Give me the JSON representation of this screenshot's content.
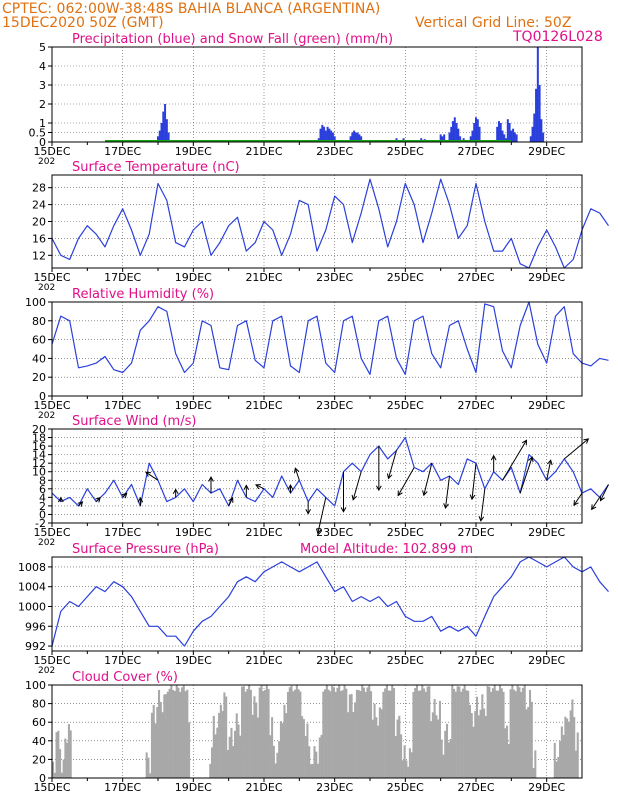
{
  "header": {
    "line1": "CPTEC:   062:00W-38:48S  BAHIA BLANCA (ARGENTINA)",
    "line2_left": "15DEC2020 50Z (GMT)",
    "line2_right": "Vertical Grid Line: 50Z",
    "code": "TQ0126L028"
  },
  "colors": {
    "header": "#e07010",
    "title": "#e0108a",
    "series": "#2a3fdc",
    "snow": "#19a019",
    "cloud": "#a8a8a8",
    "axis": "#000000"
  },
  "x_axis": {
    "labels": [
      "15DEC",
      "17DEC",
      "19DEC",
      "21DEC",
      "23DEC",
      "25DEC",
      "27DEC",
      "29DEC"
    ],
    "stub": "202"
  },
  "chart_data": [
    {
      "id": "precip",
      "type": "bar",
      "title": "Precipitation (blue) and Snow Fall (green) (mm/h)",
      "ylim": [
        0,
        5
      ],
      "yticks": [
        "0",
        "0.5",
        "1",
        "2",
        "3",
        "4",
        "5"
      ],
      "grid": true,
      "series": [
        {
          "name": "Precipitation",
          "color": "#2a3fdc",
          "points": [
            [
              3.0,
              0.3
            ],
            [
              3.05,
              0.6
            ],
            [
              3.1,
              1.0
            ],
            [
              3.15,
              1.6
            ],
            [
              3.2,
              2.0
            ],
            [
              3.25,
              1.2
            ],
            [
              3.3,
              0.5
            ],
            [
              7.55,
              0.2
            ],
            [
              7.6,
              0.7
            ],
            [
              7.65,
              0.9
            ],
            [
              7.7,
              0.8
            ],
            [
              7.75,
              0.6
            ],
            [
              7.8,
              0.8
            ],
            [
              7.85,
              0.7
            ],
            [
              7.9,
              0.6
            ],
            [
              7.95,
              0.5
            ],
            [
              8.0,
              0.3
            ],
            [
              8.45,
              0.3
            ],
            [
              8.5,
              0.5
            ],
            [
              8.55,
              0.6
            ],
            [
              8.6,
              0.5
            ],
            [
              8.65,
              0.5
            ],
            [
              8.7,
              0.4
            ],
            [
              8.75,
              0.3
            ],
            [
              9.1,
              0.1
            ],
            [
              9.45,
              0.1
            ],
            [
              9.75,
              0.2
            ],
            [
              9.95,
              0.2
            ],
            [
              10.35,
              0.1
            ],
            [
              10.45,
              0.2
            ],
            [
              10.55,
              0.15
            ],
            [
              11.0,
              0.4
            ],
            [
              11.05,
              0.3
            ],
            [
              11.1,
              0.4
            ],
            [
              11.25,
              0.5
            ],
            [
              11.3,
              0.8
            ],
            [
              11.35,
              1.1
            ],
            [
              11.4,
              1.3
            ],
            [
              11.45,
              1.0
            ],
            [
              11.5,
              0.7
            ],
            [
              11.55,
              0.3
            ],
            [
              11.65,
              0.2
            ],
            [
              11.85,
              0.3
            ],
            [
              11.9,
              0.6
            ],
            [
              11.95,
              1.0
            ],
            [
              12.0,
              1.3
            ],
            [
              12.05,
              1.2
            ],
            [
              12.1,
              0.8
            ],
            [
              12.6,
              0.8
            ],
            [
              12.65,
              1.1
            ],
            [
              12.7,
              1.0
            ],
            [
              12.75,
              0.6
            ],
            [
              12.8,
              0.4
            ],
            [
              12.85,
              0.2
            ],
            [
              12.9,
              1.2
            ],
            [
              12.95,
              1.0
            ],
            [
              13.0,
              0.6
            ],
            [
              13.05,
              0.7
            ],
            [
              13.1,
              0.5
            ],
            [
              13.15,
              0.4
            ],
            [
              13.55,
              0.3
            ],
            [
              13.6,
              0.8
            ],
            [
              13.65,
              1.5
            ],
            [
              13.7,
              2.8
            ],
            [
              13.75,
              5.0
            ],
            [
              13.8,
              3.0
            ],
            [
              13.85,
              1.2
            ],
            [
              13.9,
              0.5
            ]
          ]
        },
        {
          "name": "Snow Fall",
          "color": "#19a019",
          "baseline": [
            1.5,
            13.0
          ]
        }
      ]
    },
    {
      "id": "temp",
      "type": "line",
      "title": "Surface Temperature (nC)",
      "ylim": [
        9,
        31
      ],
      "yticks": [
        12,
        16,
        20,
        24,
        28
      ],
      "grid": true,
      "x": [
        0,
        0.25,
        0.5,
        0.75,
        1,
        1.25,
        1.5,
        1.75,
        2,
        2.25,
        2.5,
        2.75,
        3,
        3.25,
        3.5,
        3.75,
        4,
        4.25,
        4.5,
        4.75,
        5,
        5.25,
        5.5,
        5.75,
        6,
        6.25,
        6.5,
        6.75,
        7,
        7.25,
        7.5,
        7.75,
        8,
        8.25,
        8.5,
        8.75,
        9,
        9.25,
        9.5,
        9.75,
        10,
        10.25,
        10.5,
        10.75,
        11,
        11.25,
        11.5,
        11.75,
        12,
        12.25,
        12.5,
        12.75,
        13,
        13.25,
        13.5,
        13.75,
        14,
        14.25,
        14.5,
        14.75,
        15,
        15.25,
        15.5,
        15.75
      ],
      "series": [
        {
          "name": "",
          "values": [
            16,
            12,
            11,
            16,
            19,
            17,
            14,
            19,
            23,
            18,
            12,
            17,
            29,
            25,
            15,
            14,
            18,
            20,
            12,
            15,
            19,
            21,
            13,
            15,
            20,
            18,
            12,
            17,
            25,
            24,
            13,
            18,
            26,
            24,
            15,
            22,
            30,
            23,
            14,
            20,
            29,
            24,
            15,
            22,
            30,
            24,
            16,
            19,
            29,
            20,
            13,
            13,
            16,
            10,
            9,
            14,
            18,
            14,
            9,
            11,
            18,
            23,
            22,
            19
          ]
        }
      ]
    },
    {
      "id": "rh",
      "type": "line",
      "title": "Relative Humidity (%)",
      "ylim": [
        0,
        100
      ],
      "yticks": [
        0,
        20,
        40,
        60,
        80,
        100
      ],
      "grid": true,
      "x": [
        0,
        0.25,
        0.5,
        0.75,
        1,
        1.25,
        1.5,
        1.75,
        2,
        2.25,
        2.5,
        2.75,
        3,
        3.25,
        3.5,
        3.75,
        4,
        4.25,
        4.5,
        4.75,
        5,
        5.25,
        5.5,
        5.75,
        6,
        6.25,
        6.5,
        6.75,
        7,
        7.25,
        7.5,
        7.75,
        8,
        8.25,
        8.5,
        8.75,
        9,
        9.25,
        9.5,
        9.75,
        10,
        10.25,
        10.5,
        10.75,
        11,
        11.25,
        11.5,
        11.75,
        12,
        12.25,
        12.5,
        12.75,
        13,
        13.25,
        13.5,
        13.75,
        14,
        14.25,
        14.5,
        14.75,
        15,
        15.25,
        15.5,
        15.75
      ],
      "series": [
        {
          "name": "",
          "values": [
            55,
            85,
            80,
            30,
            32,
            35,
            42,
            28,
            25,
            35,
            70,
            80,
            95,
            90,
            45,
            25,
            35,
            80,
            75,
            30,
            28,
            75,
            80,
            38,
            30,
            80,
            85,
            32,
            25,
            80,
            85,
            35,
            25,
            80,
            85,
            40,
            23,
            80,
            85,
            40,
            23,
            80,
            85,
            45,
            30,
            75,
            80,
            50,
            25,
            98,
            95,
            48,
            30,
            75,
            100,
            55,
            35,
            85,
            95,
            45,
            35,
            32,
            40,
            38
          ]
        }
      ]
    },
    {
      "id": "wind",
      "type": "line",
      "title": "Surface Wind (m/s)",
      "ylim": [
        -2,
        20
      ],
      "yticks": [
        -2,
        0,
        2,
        4,
        6,
        8,
        10,
        12,
        14,
        16,
        18,
        20
      ],
      "grid": true,
      "x": [
        0,
        0.25,
        0.5,
        0.75,
        1,
        1.25,
        1.5,
        1.75,
        2,
        2.25,
        2.5,
        2.75,
        3,
        3.25,
        3.5,
        3.75,
        4,
        4.25,
        4.5,
        4.75,
        5,
        5.25,
        5.5,
        5.75,
        6,
        6.25,
        6.5,
        6.75,
        7,
        7.25,
        7.5,
        7.75,
        8,
        8.25,
        8.5,
        8.75,
        9,
        9.25,
        9.5,
        9.75,
        10,
        10.25,
        10.5,
        10.75,
        11,
        11.25,
        11.5,
        11.75,
        12,
        12.25,
        12.5,
        12.75,
        13,
        13.25,
        13.5,
        13.75,
        14,
        14.25,
        14.5,
        14.75,
        15,
        15.25,
        15.5,
        15.75
      ],
      "series": [
        {
          "name": "",
          "values": [
            5,
            3,
            4,
            2,
            6,
            3,
            5,
            8,
            4,
            7,
            2,
            12,
            8,
            3,
            4,
            6,
            3,
            7,
            5,
            6,
            2,
            8,
            4,
            3,
            6,
            4,
            9,
            5,
            8,
            3,
            6,
            4,
            2,
            10,
            12,
            10,
            14,
            16,
            13,
            15,
            18,
            11,
            10,
            12,
            8,
            9,
            7,
            13,
            12,
            6,
            10,
            8,
            11,
            5,
            14,
            12,
            8,
            10,
            13,
            10,
            5,
            6,
            4,
            7
          ]
        }
      ],
      "vectors": [
        [
          0.25,
          0,
          1
        ],
        [
          0.75,
          1,
          1
        ],
        [
          1.25,
          1,
          1
        ],
        [
          2,
          1,
          1
        ],
        [
          2.5,
          0,
          2
        ],
        [
          3,
          -3,
          2
        ],
        [
          3.5,
          0,
          2
        ],
        [
          4.5,
          0,
          4
        ],
        [
          5,
          1,
          2
        ],
        [
          5.5,
          0,
          3
        ],
        [
          6,
          -2,
          1
        ],
        [
          6.75,
          0,
          2
        ],
        [
          7,
          -1,
          3
        ],
        [
          7.25,
          0,
          -3
        ],
        [
          7.75,
          -2,
          -9
        ],
        [
          8.25,
          0,
          -10
        ],
        [
          8.75,
          -2,
          -7
        ],
        [
          9.25,
          0,
          -11
        ],
        [
          9.75,
          -2,
          -7
        ],
        [
          10.25,
          -4,
          -7
        ],
        [
          10.75,
          -2,
          -8
        ],
        [
          11.25,
          -1,
          -8
        ],
        [
          12,
          -1,
          -9
        ],
        [
          12.25,
          -1,
          -8
        ],
        [
          12.5,
          0,
          4
        ],
        [
          12.75,
          6,
          10
        ],
        [
          13.25,
          3,
          9
        ],
        [
          14,
          1,
          5
        ],
        [
          14.5,
          6,
          5
        ],
        [
          15,
          -2,
          -3
        ],
        [
          15.5,
          -2,
          -3
        ],
        [
          15.75,
          -2,
          -4
        ]
      ]
    },
    {
      "id": "pres",
      "type": "line",
      "title": "Surface Pressure (hPa)",
      "annotation": "Model Altitude: 102.899 m",
      "ylim": [
        991,
        1010
      ],
      "yticks": [
        992,
        996,
        1000,
        1004,
        1008
      ],
      "grid": true,
      "x": [
        0,
        0.25,
        0.5,
        0.75,
        1,
        1.25,
        1.5,
        1.75,
        2,
        2.25,
        2.5,
        2.75,
        3,
        3.25,
        3.5,
        3.75,
        4,
        4.25,
        4.5,
        4.75,
        5,
        5.25,
        5.5,
        5.75,
        6,
        6.25,
        6.5,
        6.75,
        7,
        7.25,
        7.5,
        7.75,
        8,
        8.25,
        8.5,
        8.75,
        9,
        9.25,
        9.5,
        9.75,
        10,
        10.25,
        10.5,
        10.75,
        11,
        11.25,
        11.5,
        11.75,
        12,
        12.25,
        12.5,
        12.75,
        13,
        13.25,
        13.5,
        13.75,
        14,
        14.25,
        14.5,
        14.75,
        15,
        15.25,
        15.5,
        15.75
      ],
      "series": [
        {
          "name": "",
          "values": [
            992,
            999,
            1001,
            1000,
            1002,
            1004,
            1003,
            1005,
            1004,
            1002,
            999,
            996,
            996,
            994,
            994,
            992,
            995,
            997,
            998,
            1000,
            1002,
            1005,
            1006,
            1005,
            1007,
            1008,
            1009,
            1008,
            1007,
            1008,
            1009,
            1006,
            1003,
            1004,
            1001,
            1002,
            1001,
            1002,
            1000,
            1001,
            998,
            997,
            997,
            998,
            995,
            996,
            995,
            996,
            994,
            998,
            1002,
            1004,
            1006,
            1009,
            1010,
            1009,
            1008,
            1009,
            1010,
            1008,
            1007,
            1008,
            1005,
            1003
          ]
        }
      ]
    },
    {
      "id": "cloud",
      "type": "bar",
      "title": "Cloud Cover (%)",
      "ylim": [
        0,
        100
      ],
      "yticks": [
        0,
        20,
        40,
        60,
        80,
        100
      ],
      "grid": true,
      "segments": [
        [
          0,
          30
        ],
        [
          0.1,
          55
        ],
        [
          0.25,
          20
        ],
        [
          0.35,
          60
        ],
        [
          0.5,
          0
        ],
        [
          2.6,
          30
        ],
        [
          2.75,
          80
        ],
        [
          2.9,
          95
        ],
        [
          3.2,
          100
        ],
        [
          3.8,
          60
        ],
        [
          3.85,
          0
        ],
        [
          4.4,
          40
        ],
        [
          4.5,
          70
        ],
        [
          4.7,
          95
        ],
        [
          4.9,
          55
        ],
        [
          5.1,
          70
        ],
        [
          5.3,
          100
        ],
        [
          5.6,
          90
        ],
        [
          5.8,
          100
        ],
        [
          6.1,
          70
        ],
        [
          6.2,
          40
        ],
        [
          6.4,
          80
        ],
        [
          6.6,
          100
        ],
        [
          7.0,
          70
        ],
        [
          7.2,
          35
        ],
        [
          7.4,
          40
        ],
        [
          7.5,
          50
        ],
        [
          7.6,
          100
        ],
        [
          8.3,
          95
        ],
        [
          8.6,
          100
        ],
        [
          9.0,
          80
        ],
        [
          9.3,
          100
        ],
        [
          9.7,
          70
        ],
        [
          9.9,
          35
        ],
        [
          10.2,
          100
        ],
        [
          10.7,
          85
        ],
        [
          11.0,
          50
        ],
        [
          11.1,
          60
        ],
        [
          11.3,
          100
        ],
        [
          11.8,
          80
        ],
        [
          12.0,
          90
        ],
        [
          12.3,
          100
        ],
        [
          12.8,
          60
        ],
        [
          12.95,
          100
        ],
        [
          13.4,
          95
        ],
        [
          13.6,
          35
        ],
        [
          13.7,
          0
        ],
        [
          14.2,
          40
        ],
        [
          14.4,
          70
        ],
        [
          14.6,
          85
        ],
        [
          14.8,
          50
        ],
        [
          14.9,
          10
        ],
        [
          15.2,
          0
        ]
      ]
    }
  ]
}
